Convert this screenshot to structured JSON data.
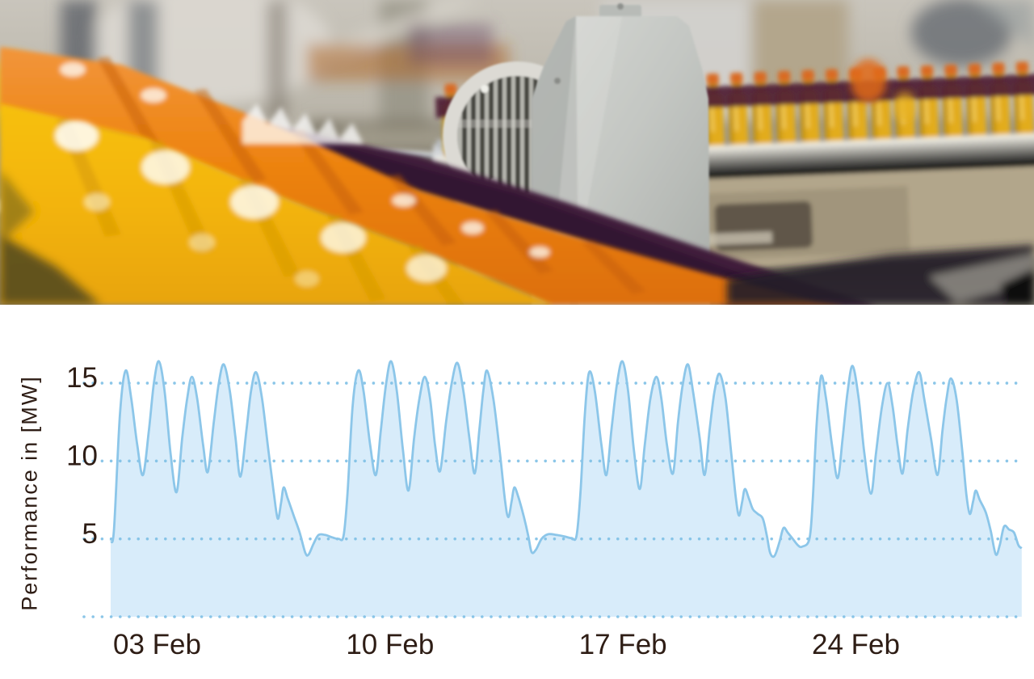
{
  "page": {
    "background": "#ffffff"
  },
  "photo": {
    "alt": "Blurred factory photo of a juice bottling line: rows of orange and yellow juice bottles on curving conveyors, a stainless steel plate and electric motor in focus",
    "palette": {
      "bottle_yellow": "#f2b40a",
      "bottle_orange": "#ec8312",
      "cap_orange": "#d96a23",
      "belt_purple": "#3f1f3b",
      "rail_maroon": "#4f1d33",
      "steel_gray": "#c6c9c5",
      "machine_tan": "#b2a68b"
    }
  },
  "chart_data": {
    "type": "area",
    "title": "",
    "xlabel": "",
    "ylabel": "Performance in [MW]",
    "unit": "MW",
    "grid": "dotted-horizontal",
    "legend": "none",
    "ylim": [
      0,
      17
    ],
    "xlim_days": [
      0,
      27.38
    ],
    "y_grid": [
      0,
      5,
      10,
      15
    ],
    "y_ticks": [
      {
        "value": 5,
        "label": "5"
      },
      {
        "value": 10,
        "label": "10"
      },
      {
        "value": 15,
        "label": "15"
      }
    ],
    "x_ticks": [
      {
        "day": 0,
        "label": "03 Feb"
      },
      {
        "day": 7,
        "label": "10 Feb"
      },
      {
        "day": 14,
        "label": "17 Feb"
      },
      {
        "day": 21,
        "label": "24 Feb"
      }
    ],
    "colors": {
      "line": "#8cc6e9",
      "fill": "#d8ecfa",
      "grid_dots": "#7fc0e6",
      "text": "#2e1d15"
    },
    "series": [
      {
        "name": "Performance",
        "points_day_mw": [
          [
            0,
            4.9
          ],
          [
            0.1,
            5.6
          ],
          [
            0.28,
            13
          ],
          [
            0.45,
            15.8
          ],
          [
            0.62,
            14
          ],
          [
            0.8,
            11
          ],
          [
            0.97,
            9.1
          ],
          [
            1.15,
            12
          ],
          [
            1.3,
            15
          ],
          [
            1.45,
            16.4
          ],
          [
            1.62,
            14.5
          ],
          [
            1.8,
            10.5
          ],
          [
            1.98,
            8.0
          ],
          [
            2.15,
            11.5
          ],
          [
            2.3,
            14
          ],
          [
            2.44,
            15.4
          ],
          [
            2.6,
            14
          ],
          [
            2.78,
            11
          ],
          [
            2.92,
            9.3
          ],
          [
            3.1,
            12.5
          ],
          [
            3.25,
            15
          ],
          [
            3.4,
            16.2
          ],
          [
            3.58,
            14.5
          ],
          [
            3.75,
            11.5
          ],
          [
            3.9,
            9.0
          ],
          [
            4.08,
            12
          ],
          [
            4.22,
            14.5
          ],
          [
            4.37,
            15.7
          ],
          [
            4.55,
            14
          ],
          [
            4.75,
            10.5
          ],
          [
            4.9,
            8
          ],
          [
            5.02,
            6.3
          ],
          [
            5.12,
            7.3
          ],
          [
            5.2,
            8.3
          ],
          [
            5.32,
            7.6
          ],
          [
            5.5,
            6.5
          ],
          [
            5.68,
            5.4
          ],
          [
            5.85,
            4.1
          ],
          [
            5.95,
            4.0
          ],
          [
            6.1,
            4.7
          ],
          [
            6.25,
            5.25
          ],
          [
            6.45,
            5.25
          ],
          [
            6.65,
            5.1
          ],
          [
            6.85,
            5.0
          ],
          [
            7.0,
            5.2
          ],
          [
            7.12,
            8
          ],
          [
            7.27,
            13.5
          ],
          [
            7.44,
            15.8
          ],
          [
            7.6,
            14.5
          ],
          [
            7.8,
            11
          ],
          [
            7.97,
            9.1
          ],
          [
            8.12,
            12
          ],
          [
            8.28,
            15
          ],
          [
            8.43,
            16.4
          ],
          [
            8.6,
            14.5
          ],
          [
            8.78,
            10.8
          ],
          [
            8.95,
            8.1
          ],
          [
            9.12,
            11.5
          ],
          [
            9.28,
            14
          ],
          [
            9.44,
            15.4
          ],
          [
            9.6,
            14
          ],
          [
            9.75,
            11
          ],
          [
            9.9,
            9.35
          ],
          [
            10.08,
            12.5
          ],
          [
            10.25,
            15
          ],
          [
            10.42,
            16.3
          ],
          [
            10.6,
            14.5
          ],
          [
            10.78,
            11.5
          ],
          [
            10.94,
            9.2
          ],
          [
            11.08,
            12
          ],
          [
            11.2,
            14.5
          ],
          [
            11.31,
            15.8
          ],
          [
            11.5,
            14
          ],
          [
            11.7,
            10.5
          ],
          [
            11.85,
            7.5
          ],
          [
            11.95,
            6.4
          ],
          [
            12.05,
            7.4
          ],
          [
            12.13,
            8.3
          ],
          [
            12.25,
            7.7
          ],
          [
            12.42,
            6.4
          ],
          [
            12.55,
            5.2
          ],
          [
            12.65,
            4.15
          ],
          [
            12.78,
            4.3
          ],
          [
            12.95,
            5.0
          ],
          [
            13.15,
            5.3
          ],
          [
            13.4,
            5.25
          ],
          [
            13.65,
            5.15
          ],
          [
            13.85,
            5.05
          ],
          [
            14.0,
            5.2
          ],
          [
            14.12,
            8
          ],
          [
            14.25,
            13
          ],
          [
            14.38,
            15.7
          ],
          [
            14.55,
            14.5
          ],
          [
            14.75,
            11
          ],
          [
            14.9,
            9.1
          ],
          [
            15.05,
            12
          ],
          [
            15.22,
            15
          ],
          [
            15.38,
            16.4
          ],
          [
            15.55,
            14.5
          ],
          [
            15.72,
            10.8
          ],
          [
            15.9,
            8.2
          ],
          [
            16.05,
            11
          ],
          [
            16.22,
            14
          ],
          [
            16.4,
            15.4
          ],
          [
            16.55,
            14
          ],
          [
            16.72,
            11
          ],
          [
            16.9,
            9.2
          ],
          [
            17.05,
            12.5
          ],
          [
            17.2,
            15
          ],
          [
            17.35,
            16.2
          ],
          [
            17.5,
            14.5
          ],
          [
            17.7,
            11.5
          ],
          [
            17.85,
            9.1
          ],
          [
            18.0,
            12
          ],
          [
            18.15,
            14.5
          ],
          [
            18.3,
            15.6
          ],
          [
            18.48,
            14
          ],
          [
            18.65,
            10.5
          ],
          [
            18.78,
            7.8
          ],
          [
            18.88,
            6.5
          ],
          [
            18.98,
            7.4
          ],
          [
            19.06,
            8.2
          ],
          [
            19.18,
            7.6
          ],
          [
            19.3,
            6.9
          ],
          [
            19.45,
            6.6
          ],
          [
            19.6,
            6.3
          ],
          [
            19.72,
            5.2
          ],
          [
            19.82,
            4.1
          ],
          [
            19.95,
            3.9
          ],
          [
            20.1,
            4.8
          ],
          [
            20.22,
            5.7
          ],
          [
            20.35,
            5.4
          ],
          [
            20.5,
            5.0
          ],
          [
            20.65,
            4.6
          ],
          [
            20.78,
            4.5
          ],
          [
            21.0,
            5.0
          ],
          [
            21.1,
            7.5
          ],
          [
            21.22,
            12.5
          ],
          [
            21.35,
            15.45
          ],
          [
            21.5,
            14
          ],
          [
            21.68,
            11
          ],
          [
            21.85,
            8.9
          ],
          [
            22.0,
            11.5
          ],
          [
            22.15,
            14.5
          ],
          [
            22.3,
            16.1
          ],
          [
            22.48,
            14
          ],
          [
            22.65,
            10.5
          ],
          [
            22.85,
            7.9
          ],
          [
            23.0,
            10.5
          ],
          [
            23.18,
            13.5
          ],
          [
            23.35,
            15.0
          ],
          [
            23.5,
            13.5
          ],
          [
            23.65,
            11
          ],
          [
            23.8,
            9.2
          ],
          [
            23.95,
            12
          ],
          [
            24.12,
            14.5
          ],
          [
            24.3,
            15.7
          ],
          [
            24.45,
            14
          ],
          [
            24.65,
            11.5
          ],
          [
            24.85,
            9.1
          ],
          [
            25.0,
            12
          ],
          [
            25.12,
            14
          ],
          [
            25.25,
            15.3
          ],
          [
            25.42,
            14
          ],
          [
            25.6,
            10.5
          ],
          [
            25.72,
            7.8
          ],
          [
            25.82,
            6.6
          ],
          [
            25.92,
            7.4
          ],
          [
            26.0,
            8.1
          ],
          [
            26.12,
            7.5
          ],
          [
            26.3,
            6.7
          ],
          [
            26.45,
            5.5
          ],
          [
            26.6,
            4.0
          ],
          [
            26.72,
            4.6
          ],
          [
            26.85,
            5.8
          ],
          [
            27.0,
            5.6
          ],
          [
            27.15,
            5.4
          ],
          [
            27.28,
            4.6
          ],
          [
            27.38,
            4.4
          ]
        ]
      }
    ]
  }
}
